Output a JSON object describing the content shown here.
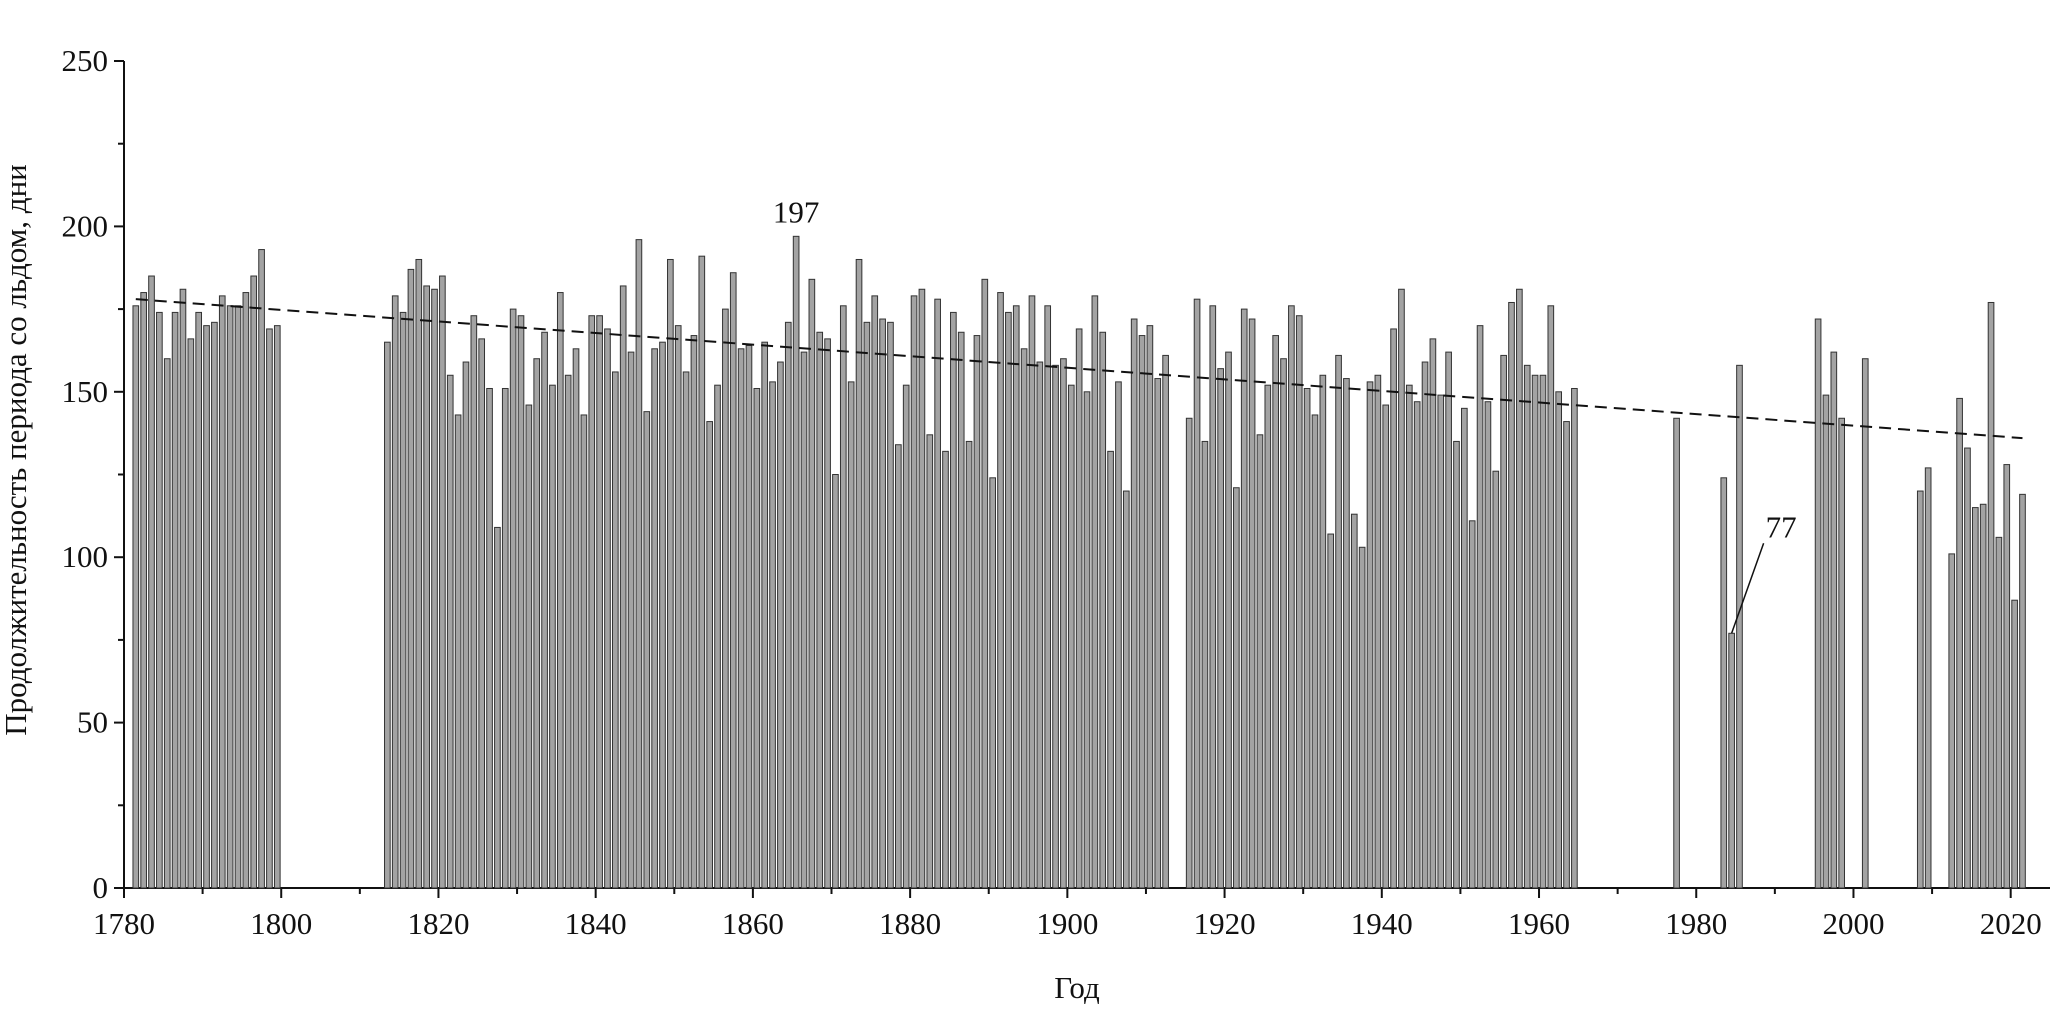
{
  "chart_data": {
    "type": "bar",
    "y_label": "Продолжительность периода со льдом, дни",
    "x_label": "Год",
    "x": [
      1781,
      1782,
      1783,
      1784,
      1785,
      1786,
      1787,
      1788,
      1789,
      1790,
      1791,
      1792,
      1793,
      1794,
      1795,
      1796,
      1797,
      1798,
      1799,
      1813,
      1814,
      1815,
      1816,
      1817,
      1818,
      1819,
      1820,
      1821,
      1822,
      1823,
      1824,
      1825,
      1826,
      1827,
      1828,
      1829,
      1830,
      1831,
      1832,
      1833,
      1834,
      1835,
      1836,
      1837,
      1838,
      1839,
      1840,
      1841,
      1842,
      1843,
      1844,
      1845,
      1846,
      1847,
      1848,
      1849,
      1850,
      1851,
      1852,
      1853,
      1854,
      1855,
      1856,
      1857,
      1858,
      1859,
      1860,
      1861,
      1862,
      1863,
      1864,
      1865,
      1866,
      1867,
      1868,
      1869,
      1870,
      1871,
      1872,
      1873,
      1874,
      1875,
      1876,
      1877,
      1878,
      1879,
      1880,
      1881,
      1882,
      1883,
      1884,
      1885,
      1886,
      1887,
      1888,
      1889,
      1890,
      1891,
      1892,
      1893,
      1894,
      1895,
      1896,
      1897,
      1898,
      1899,
      1900,
      1901,
      1902,
      1903,
      1904,
      1905,
      1906,
      1907,
      1908,
      1909,
      1910,
      1911,
      1912,
      1915,
      1916,
      1917,
      1918,
      1919,
      1920,
      1921,
      1922,
      1923,
      1924,
      1925,
      1926,
      1927,
      1928,
      1929,
      1930,
      1931,
      1932,
      1933,
      1934,
      1935,
      1936,
      1937,
      1938,
      1939,
      1940,
      1941,
      1942,
      1943,
      1944,
      1945,
      1946,
      1947,
      1948,
      1949,
      1950,
      1951,
      1952,
      1953,
      1954,
      1955,
      1956,
      1957,
      1958,
      1959,
      1960,
      1961,
      1962,
      1963,
      1964,
      1977,
      1983,
      1984,
      1985,
      1995,
      1996,
      1997,
      1998,
      2001,
      2008,
      2009,
      2012,
      2013,
      2014,
      2015,
      2016,
      2017,
      2018,
      2019,
      2020,
      2021
    ],
    "values": [
      176,
      180,
      185,
      174,
      160,
      174,
      181,
      166,
      174,
      170,
      171,
      179,
      176,
      176,
      180,
      185,
      193,
      169,
      170,
      165,
      179,
      174,
      187,
      190,
      182,
      181,
      185,
      155,
      143,
      159,
      173,
      166,
      151,
      109,
      151,
      175,
      173,
      146,
      160,
      168,
      152,
      180,
      155,
      163,
      143,
      173,
      173,
      169,
      156,
      182,
      162,
      196,
      144,
      163,
      165,
      190,
      170,
      156,
      167,
      191,
      141,
      152,
      175,
      186,
      163,
      164,
      151,
      165,
      153,
      159,
      171,
      197,
      162,
      184,
      168,
      166,
      125,
      176,
      153,
      190,
      171,
      179,
      172,
      171,
      134,
      152,
      179,
      181,
      137,
      178,
      132,
      174,
      168,
      135,
      167,
      184,
      124,
      180,
      174,
      176,
      163,
      179,
      159,
      176,
      158,
      160,
      152,
      169,
      150,
      179,
      168,
      132,
      153,
      120,
      172,
      167,
      170,
      154,
      161,
      142,
      178,
      135,
      176,
      157,
      162,
      121,
      175,
      172,
      137,
      152,
      167,
      160,
      176,
      173,
      151,
      143,
      155,
      107,
      161,
      154,
      113,
      103,
      153,
      155,
      146,
      169,
      181,
      152,
      147,
      159,
      166,
      149,
      162,
      135,
      145,
      111,
      170,
      147,
      126,
      161,
      177,
      181,
      158,
      155,
      155,
      176,
      150,
      141,
      151,
      142,
      124,
      77,
      158,
      172,
      149,
      162,
      142,
      160,
      120,
      127,
      101,
      148,
      133,
      115,
      116,
      177,
      106,
      128,
      87,
      119
    ],
    "color": "#a3a3a3",
    "trend": {
      "x": [
        1781,
        2021
      ],
      "values": [
        178,
        136
      ]
    },
    "annotations": [
      {
        "label": "197",
        "x": 1865,
        "y": 197
      },
      {
        "label": "77",
        "x": 1984,
        "y": 77
      }
    ],
    "xlim": [
      1780,
      2025
    ],
    "xticks": [
      1780,
      1800,
      1820,
      1840,
      1860,
      1880,
      1900,
      1920,
      1940,
      1960,
      1980,
      2000,
      2020
    ],
    "xticks_minor": [
      1790,
      1810,
      1830,
      1850,
      1870,
      1890,
      1910,
      1930,
      1950,
      1970,
      1990,
      2010
    ],
    "ylim": [
      0,
      250
    ],
    "yticks": [
      0,
      50,
      100,
      150,
      200,
      250
    ],
    "yticks_minor": [
      25,
      75,
      125,
      175,
      225
    ]
  }
}
